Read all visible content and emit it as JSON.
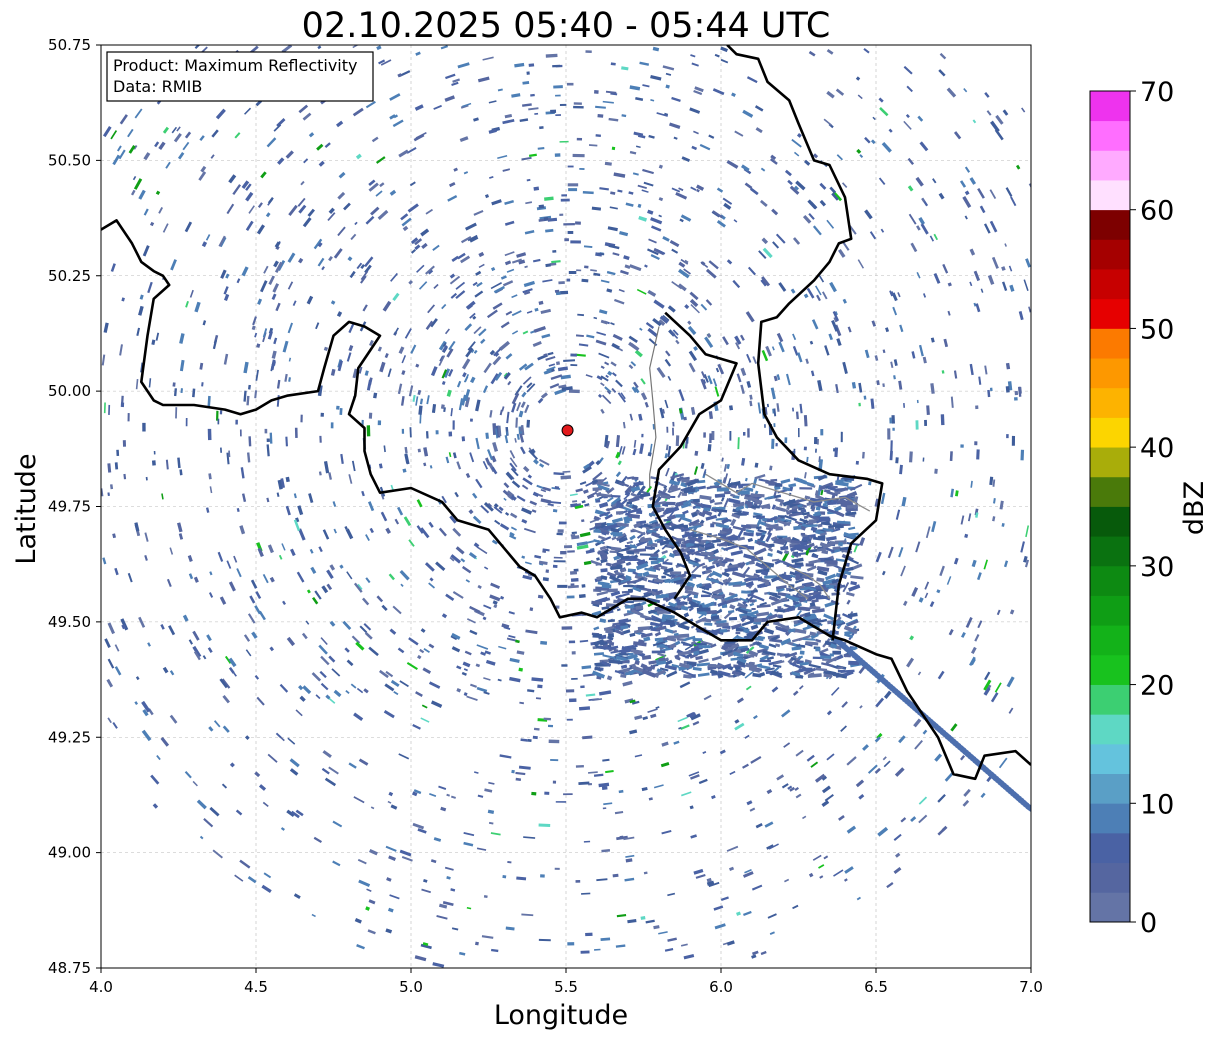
{
  "title": "02.10.2025 05:40 - 05:44 UTC",
  "info_box": {
    "product_line": "Product: Maximum Reflectivity",
    "data_line": "Data: RMIB"
  },
  "axes": {
    "xlabel": "Longitude",
    "ylabel": "Latitude",
    "xlim": [
      4.0,
      7.0
    ],
    "ylim": [
      48.75,
      50.75
    ],
    "xticks": [
      "4.0",
      "4.5",
      "5.0",
      "5.5",
      "6.0",
      "6.5",
      "7.0"
    ],
    "yticks": [
      "48.75",
      "49.00",
      "49.25",
      "49.50",
      "49.75",
      "50.00",
      "50.25",
      "50.50",
      "50.75"
    ],
    "grid": true
  },
  "radar_site": {
    "lon": 5.505,
    "lat": 49.915,
    "color": "#e31a1c"
  },
  "colorbar": {
    "label": "dBZ",
    "ticks": [
      "0",
      "10",
      "20",
      "30",
      "40",
      "50",
      "60",
      "70"
    ],
    "range": [
      0,
      70
    ],
    "colors": [
      "#6474a6",
      "#5566a0",
      "#4a62a4",
      "#4d7fb6",
      "#5a9fc6",
      "#64c3dd",
      "#5ed8c4",
      "#3ccf72",
      "#18c21e",
      "#13b219",
      "#0f9e15",
      "#0d8a12",
      "#0a7210",
      "#075a0b",
      "#4a7a0a",
      "#a9ad0a",
      "#fcd500",
      "#fdb300",
      "#fd9800",
      "#fc7a00",
      "#e60000",
      "#c70000",
      "#a50000",
      "#7d0000",
      "#ffe0ff",
      "#ffaaff",
      "#ff6eff",
      "#ee33ee"
    ]
  },
  "borders": {
    "west": [
      [
        4.0,
        50.35
      ],
      [
        4.05,
        50.37
      ],
      [
        4.1,
        50.32
      ],
      [
        4.13,
        50.28
      ],
      [
        4.17,
        50.26
      ],
      [
        4.2,
        50.25
      ],
      [
        4.22,
        50.23
      ],
      [
        4.17,
        50.2
      ],
      [
        4.15,
        50.12
      ],
      [
        4.13,
        50.02
      ],
      [
        4.17,
        49.98
      ],
      [
        4.2,
        49.97
      ],
      [
        4.3,
        49.97
      ],
      [
        4.4,
        49.96
      ],
      [
        4.45,
        49.95
      ],
      [
        4.5,
        49.96
      ],
      [
        4.55,
        49.98
      ],
      [
        4.6,
        49.99
      ],
      [
        4.7,
        50.0
      ],
      [
        4.72,
        50.05
      ],
      [
        4.75,
        50.12
      ],
      [
        4.8,
        50.15
      ],
      [
        4.85,
        50.14
      ],
      [
        4.9,
        50.12
      ],
      [
        4.87,
        50.09
      ],
      [
        4.83,
        50.05
      ],
      [
        4.82,
        49.99
      ],
      [
        4.8,
        49.95
      ],
      [
        4.85,
        49.92
      ],
      [
        4.85,
        49.87
      ],
      [
        4.87,
        49.82
      ],
      [
        4.9,
        49.78
      ],
      [
        5.0,
        49.79
      ],
      [
        5.1,
        49.76
      ],
      [
        5.15,
        49.72
      ],
      [
        5.25,
        49.7
      ],
      [
        5.35,
        49.62
      ],
      [
        5.4,
        49.6
      ],
      [
        5.45,
        49.55
      ],
      [
        5.48,
        49.51
      ],
      [
        5.55,
        49.52
      ],
      [
        5.6,
        49.51
      ],
      [
        5.7,
        49.55
      ],
      [
        5.75,
        49.55
      ],
      [
        5.85,
        49.52
      ],
      [
        5.9,
        49.5
      ],
      [
        6.0,
        49.46
      ],
      [
        6.1,
        49.46
      ],
      [
        6.15,
        49.5
      ],
      [
        6.25,
        49.51
      ],
      [
        6.35,
        49.47
      ],
      [
        6.4,
        49.46
      ],
      [
        6.5,
        49.43
      ],
      [
        6.55,
        49.42
      ],
      [
        6.6,
        49.35
      ],
      [
        6.7,
        49.25
      ],
      [
        6.75,
        49.17
      ],
      [
        6.82,
        49.16
      ],
      [
        6.85,
        49.21
      ],
      [
        6.95,
        49.22
      ],
      [
        7.0,
        49.19
      ]
    ],
    "east": [
      [
        6.02,
        50.75
      ],
      [
        6.05,
        50.73
      ],
      [
        6.12,
        50.72
      ],
      [
        6.15,
        50.67
      ],
      [
        6.22,
        50.63
      ],
      [
        6.25,
        50.58
      ],
      [
        6.3,
        50.5
      ],
      [
        6.35,
        50.49
      ],
      [
        6.4,
        50.42
      ],
      [
        6.42,
        50.33
      ],
      [
        6.38,
        50.32
      ],
      [
        6.35,
        50.28
      ],
      [
        6.3,
        50.24
      ],
      [
        6.22,
        50.19
      ],
      [
        6.18,
        50.16
      ],
      [
        6.13,
        50.15
      ],
      [
        6.12,
        50.06
      ],
      [
        6.14,
        49.95
      ],
      [
        6.18,
        49.9
      ],
      [
        6.25,
        49.85
      ],
      [
        6.35,
        49.82
      ],
      [
        6.47,
        49.81
      ],
      [
        6.52,
        49.8
      ],
      [
        6.5,
        49.72
      ],
      [
        6.42,
        49.67
      ],
      [
        6.38,
        49.58
      ],
      [
        6.36,
        49.46
      ]
    ],
    "south_lux": [
      [
        5.82,
        50.17
      ],
      [
        5.9,
        50.12
      ],
      [
        5.95,
        50.08
      ],
      [
        6.05,
        50.06
      ],
      [
        6.0,
        49.98
      ],
      [
        5.93,
        49.95
      ],
      [
        5.87,
        49.88
      ],
      [
        5.8,
        49.83
      ],
      [
        5.78,
        49.75
      ],
      [
        5.82,
        49.7
      ],
      [
        5.87,
        49.65
      ],
      [
        5.9,
        49.6
      ],
      [
        5.85,
        49.55
      ]
    ],
    "inner_lux": [
      [
        5.8,
        50.14
      ],
      [
        5.77,
        50.05
      ],
      [
        5.78,
        49.98
      ],
      [
        5.79,
        49.9
      ],
      [
        5.77,
        49.82
      ],
      [
        5.77,
        49.79
      ]
    ]
  },
  "rivers": [
    [
      [
        5.95,
        49.82
      ],
      [
        6.05,
        49.78
      ],
      [
        6.1,
        49.8
      ],
      [
        6.2,
        49.78
      ],
      [
        6.3,
        49.76
      ],
      [
        6.4,
        49.77
      ],
      [
        6.48,
        49.74
      ]
    ],
    [
      [
        5.9,
        49.7
      ],
      [
        6.0,
        49.68
      ],
      [
        6.08,
        49.66
      ],
      [
        6.15,
        49.62
      ],
      [
        6.22,
        49.58
      ],
      [
        6.28,
        49.55
      ]
    ],
    [
      [
        6.22,
        49.62
      ],
      [
        6.28,
        49.6
      ],
      [
        6.32,
        49.58
      ],
      [
        6.35,
        49.55
      ]
    ]
  ]
}
